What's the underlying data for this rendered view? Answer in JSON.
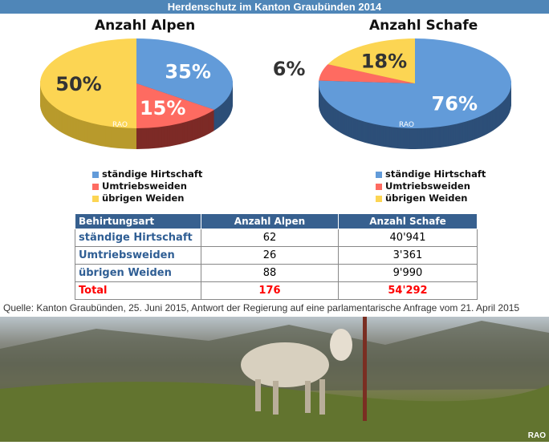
{
  "header": {
    "title": "Herdenschutz im Kanton Graubünden 2014"
  },
  "chart_data": [
    {
      "type": "pie",
      "title": "Anzahl Alpen",
      "categories": [
        "ständige Hirtschaft",
        "Umtriebsweiden",
        "übrigen Weiden"
      ],
      "values": [
        35,
        15,
        50
      ],
      "labels": [
        "35%",
        "15%",
        "50%"
      ],
      "watermark": "RAO"
    },
    {
      "type": "pie",
      "title": "Anzahl Schafe",
      "categories": [
        "ständige Hirtschaft",
        "Umtriebsweiden",
        "übrigen Weiden"
      ],
      "values": [
        76,
        6,
        18
      ],
      "labels": [
        "76%",
        "6%",
        "18%"
      ],
      "watermark": "RAO"
    }
  ],
  "colors": {
    "blue": "#629bd9",
    "red": "#fe6b61",
    "yellow": "#fcd553"
  },
  "legend": [
    "ständige Hirtschaft",
    "Umtriebsweiden",
    "übrigen Weiden"
  ],
  "table": {
    "headers": [
      "Behirtungsart",
      "Anzahl Alpen",
      "Anzahl Schafe"
    ],
    "rows": [
      [
        "ständige Hirtschaft",
        "62",
        "40'941"
      ],
      [
        "Umtriebsweiden",
        "26",
        "3'361"
      ],
      [
        "übrigen Weiden",
        "88",
        "9'990"
      ]
    ],
    "total": [
      "Total",
      "176",
      "54'292"
    ]
  },
  "source": "Quelle: Kanton Graubünden, 25. Juni 2015, Antwort der Regierung auf eine parlamentarische Anfrage vom 21. April 2015",
  "photo": {
    "watermark": "RAO"
  }
}
